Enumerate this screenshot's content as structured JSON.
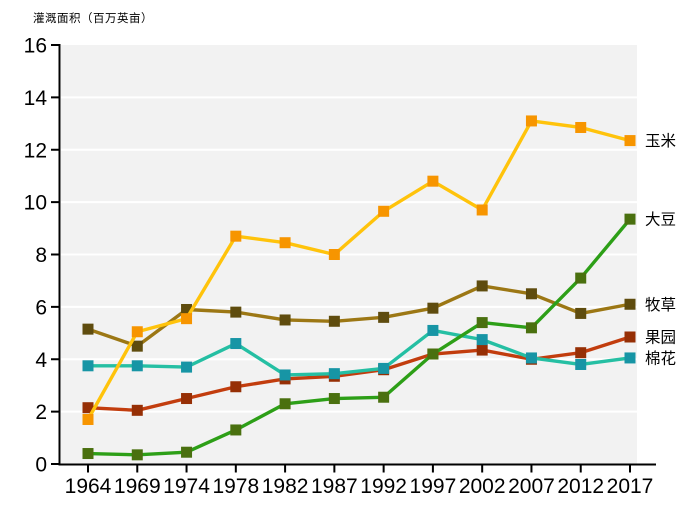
{
  "page": {
    "background": "#FFFFFF"
  },
  "chart_data": {
    "type": "line",
    "title": "灌溉面积（百万英亩）",
    "categories": [
      "1964",
      "1969",
      "1974",
      "1978",
      "1982",
      "1987",
      "1992",
      "1997",
      "2002",
      "2007",
      "2012",
      "2017"
    ],
    "xlabel": "",
    "ylabel": "灌溉面积（百万英亩）",
    "ylim": [
      0,
      16
    ],
    "ytick_step": 2,
    "grid": true,
    "plot_bg_color": "#F2F2F2",
    "grid_color": "#FFFFFF",
    "axis_color": "#000000",
    "legend_position": "right-of-last-point",
    "series": [
      {
        "key": "pasture",
        "name": "牧草",
        "line_color": "#9C7714",
        "marker_color": "#5F4C0E",
        "values": [
          5.15,
          4.5,
          5.9,
          5.8,
          5.5,
          5.45,
          5.6,
          5.95,
          6.8,
          6.5,
          5.75,
          6.1
        ]
      },
      {
        "key": "orchard",
        "name": "果园",
        "line_color": "#C23D0E",
        "marker_color": "#962F05",
        "values": [
          2.15,
          2.05,
          2.5,
          2.95,
          3.25,
          3.35,
          3.6,
          4.2,
          4.35,
          4.0,
          4.25,
          4.85
        ]
      },
      {
        "key": "cotton",
        "name": "棉花",
        "line_color": "#25BFA3",
        "marker_color": "#1795A5",
        "values": [
          3.75,
          3.75,
          3.7,
          4.6,
          3.4,
          3.45,
          3.65,
          5.1,
          4.75,
          4.05,
          3.8,
          4.05
        ]
      },
      {
        "key": "soybean",
        "name": "大豆",
        "line_color": "#2D9F17",
        "marker_color": "#4A700F",
        "values": [
          0.4,
          0.35,
          0.45,
          1.3,
          2.3,
          2.5,
          2.55,
          4.2,
          5.4,
          5.2,
          7.1,
          9.35
        ]
      },
      {
        "key": "corn",
        "name": "玉米",
        "line_color": "#FFC30B",
        "marker_color": "#F79500",
        "values": [
          1.7,
          5.05,
          5.55,
          8.7,
          8.45,
          8.0,
          9.65,
          10.8,
          9.7,
          13.1,
          12.85,
          12.35
        ]
      }
    ]
  }
}
